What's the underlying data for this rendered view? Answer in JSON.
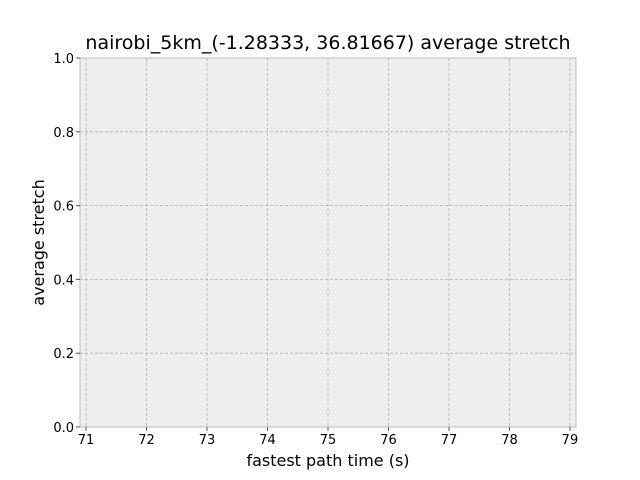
{
  "chart_data": {
    "type": "line",
    "title": "nairobi_5km_(-1.28333, 36.81667) average stretch",
    "xlabel": "fastest path time (s)",
    "ylabel": "average stretch",
    "xlim": [
      70.9,
      79.1
    ],
    "ylim": [
      0.0,
      1.0
    ],
    "x_ticks": [
      71,
      72,
      73,
      74,
      75,
      76,
      77,
      78,
      79
    ],
    "y_ticks": [
      0.0,
      0.2,
      0.4,
      0.6,
      0.8,
      1.0
    ],
    "x_tick_labels": [
      "71",
      "72",
      "73",
      "74",
      "75",
      "76",
      "77",
      "78",
      "79"
    ],
    "y_tick_labels": [
      "0.0",
      "0.2",
      "0.4",
      "0.6",
      "0.8",
      "1.0"
    ],
    "grid": true,
    "series": [],
    "colors": {
      "plot_background": "#eeeeee",
      "frame": "#bcbcbc",
      "grid": "#b0b0b0",
      "text": "#000000"
    }
  }
}
